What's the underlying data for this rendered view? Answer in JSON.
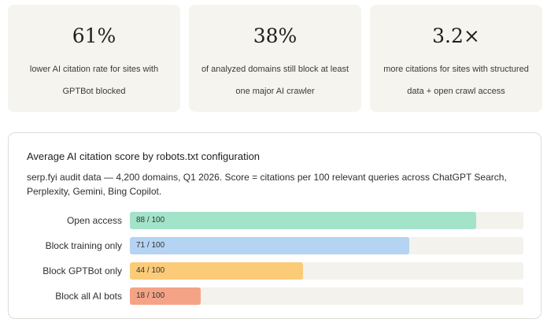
{
  "stats": [
    {
      "value": "61%",
      "description": "lower AI citation rate for sites with GPTBot blocked"
    },
    {
      "value": "38%",
      "description": "of analyzed domains still block at least one major AI crawler"
    },
    {
      "value": "3.2×",
      "description": "more citations for sites with structured data + open crawl access"
    }
  ],
  "chart_data": {
    "type": "bar",
    "orientation": "horizontal",
    "title": "Average AI citation score by robots.txt configuration",
    "subtitle": "serp.fyi audit data — 4,200 domains, Q1 2026. Score = citations per 100 relevant queries across ChatGPT Search, Perplexity, Gemini, Bing Copilot.",
    "categories": [
      "Open access",
      "Block training only",
      "Block GPTBot only",
      "Block all AI bots"
    ],
    "values": [
      88,
      71,
      44,
      18
    ],
    "value_labels": [
      "88 / 100",
      "71 / 100",
      "44 / 100",
      "18 / 100"
    ],
    "xlim": [
      0,
      100
    ],
    "colors": [
      "#a3e3c9",
      "#b5d3f2",
      "#fbcb78",
      "#f4a386"
    ],
    "track_color": "#f3f2ec",
    "grid": false,
    "legend": "none"
  }
}
